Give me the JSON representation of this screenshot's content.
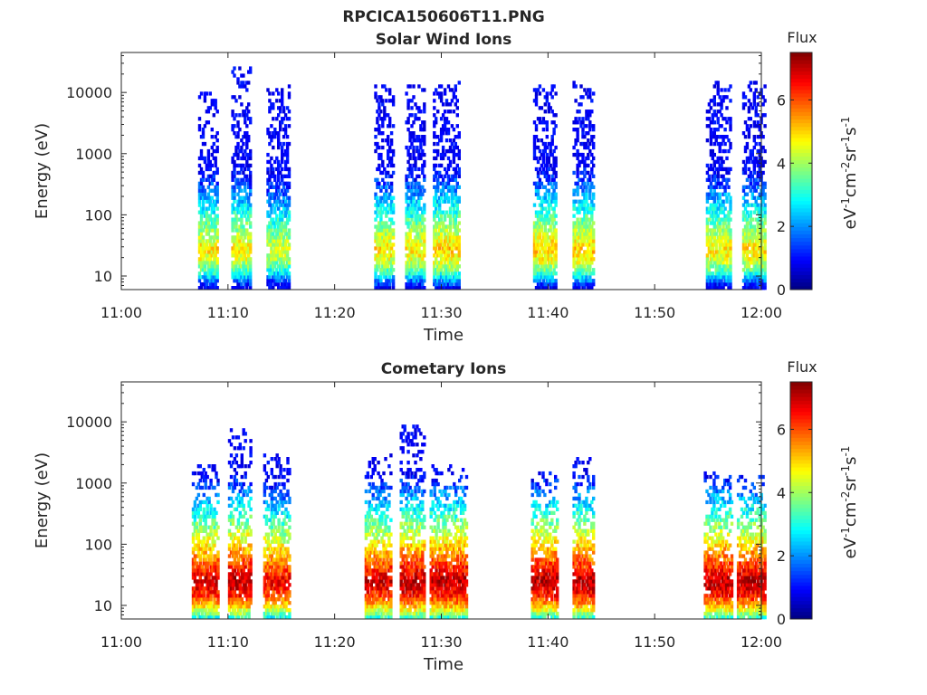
{
  "figure_title": "RPCICA150606T11.PNG",
  "chart_data": [
    {
      "type": "heatmap",
      "title": "Solar Wind Ions",
      "xlabel": "Time",
      "ylabel": "Energy (eV)",
      "x_range": [
        "11:00",
        "12:00"
      ],
      "x_ticks": [
        "11:00",
        "11:10",
        "11:20",
        "11:30",
        "11:40",
        "11:50",
        "12:00"
      ],
      "y_scale": "log",
      "y_range": [
        6,
        45000
      ],
      "y_ticks": [
        10,
        100,
        1000,
        10000
      ],
      "y_tick_labels": [
        "10",
        "100",
        "1000",
        "10000"
      ],
      "colorbar": {
        "title": "Flux",
        "label_base": "eV",
        "label_parts": [
          "-1",
          "cm",
          "-2",
          "sr",
          "-1",
          "s",
          "-1"
        ],
        "range": [
          0,
          7.5
        ],
        "ticks": [
          "0",
          "2",
          "4",
          "6"
        ],
        "colormap": "jet"
      },
      "bursts": [
        {
          "t_start": 7.2,
          "t_end": 8.9,
          "e_min": 6,
          "e_max": 10000,
          "peak_energy": 28,
          "peak_flux": 4.8,
          "spread": 0.55
        },
        {
          "t_start": 10.3,
          "t_end": 12.0,
          "e_min": 6,
          "e_max": 24000,
          "peak_energy": 28,
          "peak_flux": 4.8,
          "spread": 0.55
        },
        {
          "t_start": 13.6,
          "t_end": 15.7,
          "e_min": 6,
          "e_max": 12000,
          "peak_energy": 28,
          "peak_flux": 4.4,
          "spread": 0.55
        },
        {
          "t_start": 23.7,
          "t_end": 25.4,
          "e_min": 6,
          "e_max": 13000,
          "peak_energy": 28,
          "peak_flux": 4.8,
          "spread": 0.55
        },
        {
          "t_start": 26.6,
          "t_end": 28.4,
          "e_min": 6,
          "e_max": 13000,
          "peak_energy": 28,
          "peak_flux": 4.8,
          "spread": 0.55
        },
        {
          "t_start": 29.2,
          "t_end": 31.7,
          "e_min": 6,
          "e_max": 15000,
          "peak_energy": 28,
          "peak_flux": 5.0,
          "spread": 0.55
        },
        {
          "t_start": 38.6,
          "t_end": 40.7,
          "e_min": 6,
          "e_max": 12000,
          "peak_energy": 28,
          "peak_flux": 5.0,
          "spread": 0.55
        },
        {
          "t_start": 42.3,
          "t_end": 44.3,
          "e_min": 6,
          "e_max": 14000,
          "peak_energy": 28,
          "peak_flux": 5.0,
          "spread": 0.55
        },
        {
          "t_start": 54.8,
          "t_end": 57.1,
          "e_min": 6,
          "e_max": 14000,
          "peak_energy": 28,
          "peak_flux": 4.8,
          "spread": 0.55
        },
        {
          "t_start": 58.2,
          "t_end": 60.3,
          "e_min": 6,
          "e_max": 14000,
          "peak_energy": 28,
          "peak_flux": 4.8,
          "spread": 0.55
        }
      ]
    },
    {
      "type": "heatmap",
      "title": "Cometary Ions",
      "xlabel": "Time",
      "ylabel": "Energy (eV)",
      "x_range": [
        "11:00",
        "12:00"
      ],
      "x_ticks": [
        "11:00",
        "11:10",
        "11:20",
        "11:30",
        "11:40",
        "11:50",
        "12:00"
      ],
      "y_scale": "log",
      "y_range": [
        6,
        45000
      ],
      "y_ticks": [
        10,
        100,
        1000,
        10000
      ],
      "y_tick_labels": [
        "10",
        "100",
        "1000",
        "10000"
      ],
      "colorbar": {
        "title": "Flux",
        "label_base": "eV",
        "label_parts": [
          "-1",
          "cm",
          "-2",
          "sr",
          "-1",
          "s",
          "-1"
        ],
        "range": [
          0,
          7.5
        ],
        "ticks": [
          "0",
          "2",
          "4",
          "6"
        ],
        "colormap": "jet"
      },
      "bursts": [
        {
          "t_start": 6.6,
          "t_end": 9.0,
          "e_min": 6,
          "e_max": 2000,
          "peak_energy": 25,
          "peak_flux": 6.8,
          "spread": 0.5
        },
        {
          "t_start": 10.0,
          "t_end": 12.1,
          "e_min": 6,
          "e_max": 7000,
          "peak_energy": 25,
          "peak_flux": 7.0,
          "spread": 0.5
        },
        {
          "t_start": 13.3,
          "t_end": 15.8,
          "e_min": 6,
          "e_max": 3000,
          "peak_energy": 25,
          "peak_flux": 6.6,
          "spread": 0.5
        },
        {
          "t_start": 22.8,
          "t_end": 25.3,
          "e_min": 6,
          "e_max": 3000,
          "peak_energy": 25,
          "peak_flux": 6.8,
          "spread": 0.5
        },
        {
          "t_start": 26.1,
          "t_end": 28.3,
          "e_min": 6,
          "e_max": 9000,
          "peak_energy": 25,
          "peak_flux": 7.0,
          "spread": 0.5
        },
        {
          "t_start": 28.9,
          "t_end": 32.3,
          "e_min": 6,
          "e_max": 2000,
          "peak_energy": 25,
          "peak_flux": 7.0,
          "spread": 0.5
        },
        {
          "t_start": 38.4,
          "t_end": 40.9,
          "e_min": 6,
          "e_max": 1500,
          "peak_energy": 25,
          "peak_flux": 7.0,
          "spread": 0.5
        },
        {
          "t_start": 42.3,
          "t_end": 44.3,
          "e_min": 6,
          "e_max": 2500,
          "peak_energy": 25,
          "peak_flux": 7.0,
          "spread": 0.5
        },
        {
          "t_start": 54.6,
          "t_end": 57.2,
          "e_min": 6,
          "e_max": 1500,
          "peak_energy": 25,
          "peak_flux": 7.0,
          "spread": 0.5
        },
        {
          "t_start": 57.7,
          "t_end": 60.3,
          "e_min": 6,
          "e_max": 1200,
          "peak_energy": 25,
          "peak_flux": 7.0,
          "spread": 0.5
        }
      ]
    }
  ]
}
